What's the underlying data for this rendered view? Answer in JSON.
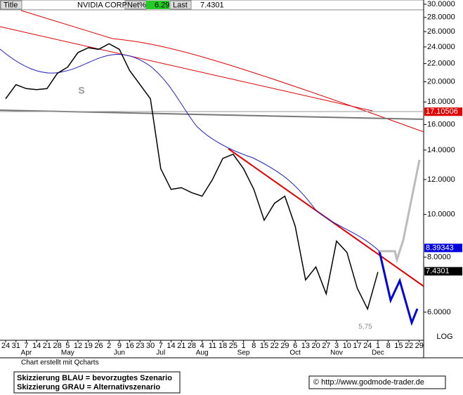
{
  "chart_data": {
    "type": "line",
    "header": {
      "title_label": "Title",
      "symbol": "NVIDIA CORP",
      "net_label": "Net%",
      "net_value": "6.29",
      "last_label": "Last",
      "last_value": "7.4301"
    },
    "categories": [
      "24",
      "31",
      "7",
      "14",
      "21",
      "28",
      "5",
      "12",
      "19",
      "26",
      "2",
      "9",
      "16",
      "23",
      "30",
      "7",
      "14",
      "21",
      "28",
      "4",
      "11",
      "18",
      "25",
      "1",
      "8",
      "15",
      "22",
      "29",
      "6",
      "13",
      "20",
      "27",
      "3",
      "10",
      "17",
      "24",
      "1",
      "8",
      "15",
      "22",
      "29"
    ],
    "month_labels": [
      null,
      null,
      "Apr",
      null,
      null,
      null,
      "May",
      null,
      null,
      null,
      null,
      "Jun",
      null,
      null,
      null,
      "Jul",
      null,
      null,
      null,
      "Aug",
      null,
      null,
      null,
      "Sep",
      null,
      null,
      null,
      null,
      "Oct",
      null,
      null,
      null,
      "Nov",
      null,
      null,
      null,
      "Dec",
      null,
      null,
      null,
      null
    ],
    "series": [
      {
        "name": "NVIDIA CORP",
        "color": "#000000",
        "values": [
          18.3,
          19.7,
          19.3,
          19.2,
          19.3,
          20.9,
          21.6,
          23.3,
          23.9,
          23.7,
          24.4,
          23.7,
          21.2,
          19.7,
          18.3,
          12.7,
          11.4,
          11.5,
          11.2,
          11.0,
          12.0,
          13.4,
          13.7,
          12.7,
          11.4,
          9.7,
          10.6,
          11.0,
          9.4,
          7.1,
          7.6,
          6.6,
          8.7,
          8.2,
          6.8,
          6.1,
          7.4,
          null,
          null,
          null,
          null
        ]
      }
    ],
    "log_scale": true,
    "ylim": [
      5.18,
      30.67
    ],
    "yticks": [
      {
        "value": 6,
        "label": "6.0000"
      },
      {
        "value": 8,
        "label": "8.0000"
      },
      {
        "value": 10,
        "label": "10.0000"
      },
      {
        "value": 12,
        "label": "12.0000"
      },
      {
        "value": 14,
        "label": "14.0000"
      },
      {
        "value": 16,
        "label": "16.0000"
      },
      {
        "value": 18,
        "label": "18.0000"
      },
      {
        "value": 20,
        "label": "20.0000"
      },
      {
        "value": 22,
        "label": "22.0000"
      },
      {
        "value": 24,
        "label": "24.0000"
      },
      {
        "value": 26,
        "label": "26.0000"
      },
      {
        "value": 28,
        "label": "28.0000"
      },
      {
        "value": 30,
        "label": "30.0000"
      }
    ],
    "price_markers": [
      17.10506,
      8.39343,
      7.4301
    ],
    "price_marker_colors": [
      "#e00000",
      "#0000e0",
      "#000000"
    ],
    "scale_label": "LOG",
    "annotations": [
      "S",
      "5,75"
    ],
    "credit": "Chart erstellt mit Qcharts",
    "legend_notes": [
      "Skizzierung BLAU = bevorzugtes Szenario",
      "Skizzierung GRAU = Alternativszenario"
    ],
    "source": "© http://www.godmode-trader.de"
  }
}
